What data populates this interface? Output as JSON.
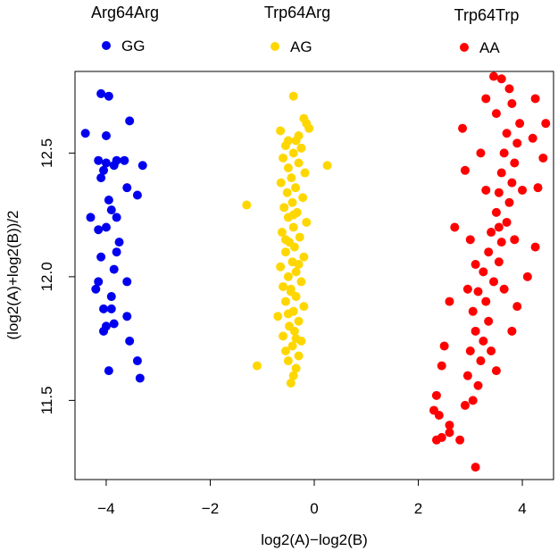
{
  "chart_data": {
    "type": "scatter",
    "title": "",
    "xlabel": "log2(A)−log2(B)",
    "ylabel": "(log2(A)+log2(B))/2",
    "xlim": [
      -4.6,
      4.6
    ],
    "ylim": [
      11.18,
      12.83
    ],
    "xticks": [
      -4,
      -2,
      0,
      2,
      4
    ],
    "xtick_labels": [
      "−4",
      "−2",
      "0",
      "2",
      "4"
    ],
    "yticks": [
      11.5,
      12.0,
      12.5
    ],
    "ytick_labels": [
      "11.5",
      "12.0",
      "12.5"
    ],
    "grid": false,
    "series": [
      {
        "name": "GG",
        "genotype": "Arg64Arg",
        "color": "#0000ee",
        "points": [
          [
            -4.1,
            12.74
          ],
          [
            -3.95,
            12.73
          ],
          [
            -3.55,
            12.63
          ],
          [
            -4.4,
            12.58
          ],
          [
            -4.0,
            12.57
          ],
          [
            -4.15,
            12.47
          ],
          [
            -4.0,
            12.46
          ],
          [
            -3.8,
            12.47
          ],
          [
            -3.65,
            12.47
          ],
          [
            -3.3,
            12.45
          ],
          [
            -4.05,
            12.43
          ],
          [
            -3.85,
            12.45
          ],
          [
            -4.1,
            12.4
          ],
          [
            -3.6,
            12.36
          ],
          [
            -3.4,
            12.33
          ],
          [
            -3.95,
            12.31
          ],
          [
            -3.9,
            12.27
          ],
          [
            -4.3,
            12.24
          ],
          [
            -3.8,
            12.24
          ],
          [
            -4.15,
            12.19
          ],
          [
            -4.0,
            12.2
          ],
          [
            -3.75,
            12.14
          ],
          [
            -3.8,
            12.1
          ],
          [
            -4.1,
            12.08
          ],
          [
            -3.85,
            12.03
          ],
          [
            -4.15,
            11.98
          ],
          [
            -3.6,
            11.98
          ],
          [
            -4.2,
            11.95
          ],
          [
            -3.9,
            11.92
          ],
          [
            -4.05,
            11.87
          ],
          [
            -3.9,
            11.87
          ],
          [
            -3.6,
            11.84
          ],
          [
            -3.85,
            11.81
          ],
          [
            -4.0,
            11.8
          ],
          [
            -4.05,
            11.78
          ],
          [
            -3.55,
            11.74
          ],
          [
            -3.4,
            11.66
          ],
          [
            -3.95,
            11.62
          ],
          [
            -3.35,
            11.59
          ]
        ]
      },
      {
        "name": "AG",
        "genotype": "Trp64Arg",
        "color": "#ffd700",
        "points": [
          [
            -0.4,
            12.73
          ],
          [
            -0.2,
            12.64
          ],
          [
            -0.15,
            12.62
          ],
          [
            -0.1,
            12.6
          ],
          [
            -0.65,
            12.59
          ],
          [
            -0.3,
            12.57
          ],
          [
            -0.5,
            12.55
          ],
          [
            0.25,
            12.45
          ],
          [
            -1.3,
            12.29
          ],
          [
            -1.1,
            11.64
          ],
          [
            -0.45,
            11.57
          ],
          [
            -0.4,
            11.6
          ],
          [
            -0.35,
            11.63
          ],
          [
            -0.5,
            11.66
          ],
          [
            -0.3,
            11.68
          ],
          [
            -0.55,
            11.7
          ],
          [
            -0.42,
            11.72
          ],
          [
            -0.25,
            11.74
          ],
          [
            -0.6,
            11.76
          ],
          [
            -0.38,
            11.78
          ],
          [
            -0.48,
            11.8
          ],
          [
            -0.3,
            11.82
          ],
          [
            -0.7,
            11.84
          ],
          [
            -0.4,
            11.86
          ],
          [
            -0.2,
            11.88
          ],
          [
            -0.55,
            11.9
          ],
          [
            -0.35,
            11.92
          ],
          [
            -0.45,
            11.94
          ],
          [
            -0.6,
            11.96
          ],
          [
            -0.25,
            11.98
          ],
          [
            -0.5,
            12.0
          ],
          [
            -0.35,
            12.02
          ],
          [
            -0.65,
            12.04
          ],
          [
            -0.42,
            12.06
          ],
          [
            -0.2,
            12.08
          ],
          [
            -0.55,
            12.1
          ],
          [
            -0.38,
            12.12
          ],
          [
            -0.48,
            12.14
          ],
          [
            -0.28,
            12.16
          ],
          [
            -0.62,
            12.18
          ],
          [
            -0.4,
            12.2
          ],
          [
            -0.15,
            12.22
          ],
          [
            -0.5,
            12.24
          ],
          [
            -0.33,
            12.26
          ],
          [
            -0.58,
            12.28
          ],
          [
            -0.42,
            12.3
          ],
          [
            -0.22,
            12.32
          ],
          [
            -0.52,
            12.34
          ],
          [
            -0.36,
            12.36
          ],
          [
            -0.64,
            12.38
          ],
          [
            -0.44,
            12.4
          ],
          [
            -0.18,
            12.42
          ],
          [
            -0.5,
            12.44
          ],
          [
            -0.3,
            12.46
          ],
          [
            -0.6,
            12.48
          ],
          [
            -0.4,
            12.5
          ],
          [
            -0.25,
            12.52
          ],
          [
            -0.55,
            12.53
          ],
          [
            -0.35,
            12.55
          ],
          [
            -0.45,
            11.95
          ],
          [
            -0.3,
            12.05
          ],
          [
            -0.55,
            12.15
          ],
          [
            -0.4,
            12.25
          ],
          [
            -0.5,
            11.85
          ],
          [
            -0.35,
            11.75
          ]
        ]
      },
      {
        "name": "AA",
        "genotype": "Trp64Trp",
        "color": "#ff0000",
        "points": [
          [
            3.45,
            12.81
          ],
          [
            3.6,
            12.8
          ],
          [
            3.75,
            12.76
          ],
          [
            4.25,
            12.72
          ],
          [
            3.3,
            12.72
          ],
          [
            4.45,
            12.62
          ],
          [
            2.85,
            12.6
          ],
          [
            4.2,
            12.56
          ],
          [
            4.4,
            12.48
          ],
          [
            2.9,
            12.43
          ],
          [
            4.3,
            12.36
          ],
          [
            2.7,
            12.2
          ],
          [
            4.25,
            12.12
          ],
          [
            2.6,
            11.9
          ],
          [
            4.1,
            12.0
          ],
          [
            2.5,
            11.72
          ],
          [
            3.9,
            11.88
          ],
          [
            2.45,
            11.64
          ],
          [
            3.8,
            11.78
          ],
          [
            2.35,
            11.52
          ],
          [
            3.5,
            11.62
          ],
          [
            2.3,
            11.46
          ],
          [
            2.4,
            11.44
          ],
          [
            2.45,
            11.35
          ],
          [
            2.35,
            11.34
          ],
          [
            2.6,
            11.37
          ],
          [
            2.8,
            11.34
          ],
          [
            3.1,
            11.23
          ],
          [
            2.6,
            11.4
          ],
          [
            2.9,
            11.48
          ],
          [
            3.05,
            11.5
          ],
          [
            3.15,
            11.56
          ],
          [
            2.95,
            11.6
          ],
          [
            3.2,
            11.66
          ],
          [
            3.0,
            11.7
          ],
          [
            3.25,
            11.74
          ],
          [
            3.1,
            11.78
          ],
          [
            3.35,
            11.82
          ],
          [
            3.05,
            11.86
          ],
          [
            3.3,
            11.9
          ],
          [
            3.15,
            11.94
          ],
          [
            3.45,
            11.98
          ],
          [
            3.25,
            12.02
          ],
          [
            3.55,
            12.06
          ],
          [
            3.35,
            12.1
          ],
          [
            3.6,
            12.14
          ],
          [
            3.4,
            12.18
          ],
          [
            3.7,
            12.22
          ],
          [
            3.5,
            12.26
          ],
          [
            3.75,
            12.3
          ],
          [
            3.55,
            12.34
          ],
          [
            3.8,
            12.38
          ],
          [
            3.6,
            12.42
          ],
          [
            3.85,
            12.46
          ],
          [
            3.65,
            12.5
          ],
          [
            3.9,
            12.54
          ],
          [
            3.7,
            12.58
          ],
          [
            3.95,
            12.62
          ],
          [
            3.5,
            12.66
          ],
          [
            3.8,
            12.7
          ],
          [
            2.95,
            11.95
          ],
          [
            3.4,
            11.7
          ],
          [
            3.0,
            12.15
          ],
          [
            3.3,
            12.35
          ],
          [
            3.65,
            11.95
          ],
          [
            3.85,
            12.15
          ],
          [
            4.0,
            12.35
          ],
          [
            3.2,
            12.5
          ],
          [
            3.55,
            12.2
          ],
          [
            3.1,
            12.05
          ]
        ]
      }
    ],
    "legend": [
      {
        "genotype": "Arg64Arg",
        "label": "GG",
        "color": "#0000ee"
      },
      {
        "genotype": "Trp64Arg",
        "label": "AG",
        "color": "#ffd700"
      },
      {
        "genotype": "Trp64Trp",
        "label": "AA",
        "color": "#ff0000"
      }
    ]
  }
}
